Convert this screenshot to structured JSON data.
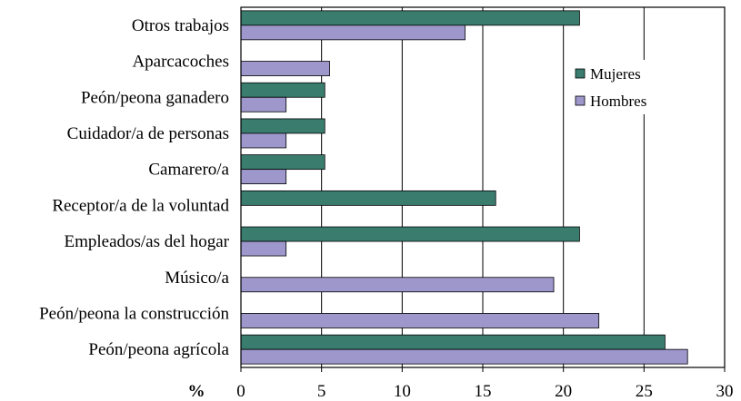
{
  "chart_data": {
    "type": "bar",
    "orientation": "horizontal",
    "categories": [
      "Otros trabajos",
      "Aparcacoches",
      "Peón/peona ganadero",
      "Cuidador/a de personas",
      "Camarero/a",
      "Receptor/a de la voluntad",
      "Empleados/as del hogar",
      "Músico/a",
      "Peón/peona la construcción",
      "Peón/peona agrícola"
    ],
    "series": [
      {
        "name": "Mujeres",
        "color": "#3a7d6f",
        "values": [
          21.0,
          0,
          5.2,
          5.2,
          5.2,
          15.8,
          21.0,
          0,
          0,
          26.3
        ]
      },
      {
        "name": "Hombres",
        "color": "#9d97cc",
        "values": [
          13.9,
          5.5,
          2.8,
          2.8,
          2.8,
          0,
          2.8,
          19.4,
          22.2,
          27.7
        ]
      }
    ],
    "x_unit_label": "%",
    "xlim": [
      0,
      30
    ],
    "xticks": [
      "0",
      "5",
      "10",
      "15",
      "20",
      "25",
      "30"
    ],
    "grid": "vertical",
    "legend_position": "upper-right"
  }
}
